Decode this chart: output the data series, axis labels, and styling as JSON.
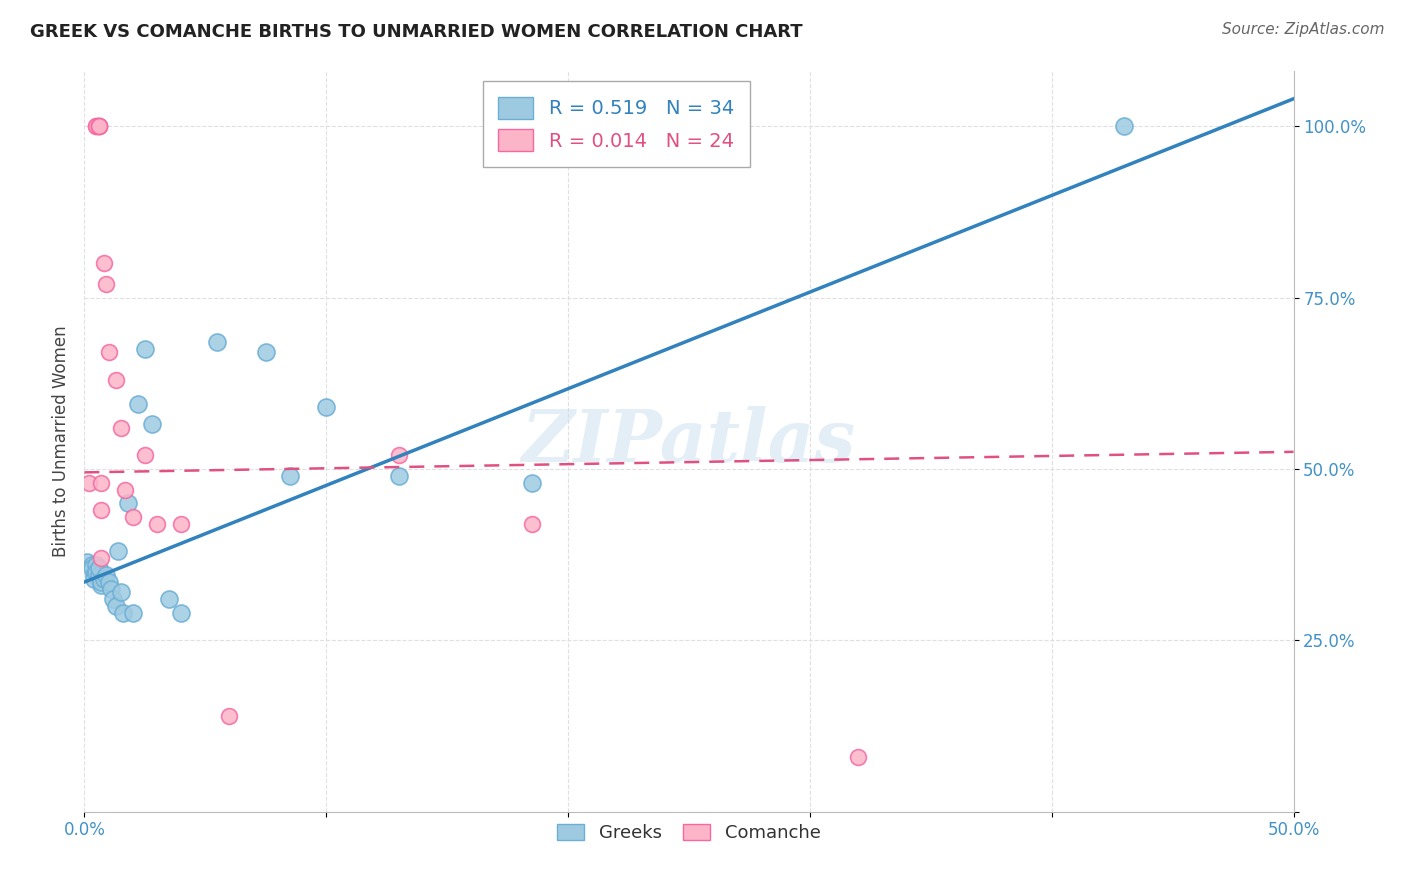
{
  "title": "GREEK VS COMANCHE BIRTHS TO UNMARRIED WOMEN CORRELATION CHART",
  "source": "Source: ZipAtlas.com",
  "ylabel": "Births to Unmarried Women",
  "xlim": [
    0.0,
    0.5
  ],
  "ylim": [
    0.0,
    1.08
  ],
  "yticks": [
    0.0,
    0.25,
    0.5,
    0.75,
    1.0
  ],
  "yticklabels": [
    "",
    "25.0%",
    "50.0%",
    "75.0%",
    "100.0%"
  ],
  "xtick_labels": [
    "0.0%",
    "",
    "",
    "",
    "",
    "50.0%"
  ],
  "xtick_positions": [
    0.0,
    0.1,
    0.2,
    0.3,
    0.4,
    0.5
  ],
  "greek_color": "#9ecae1",
  "comanche_color": "#fbb4c8",
  "greek_edge_color": "#6baed6",
  "comanche_edge_color": "#f768a1",
  "greek_line_color": "#3182bd",
  "comanche_line_color": "#e05080",
  "legend_R_greek": "R = 0.519",
  "legend_N_greek": "N = 34",
  "legend_R_comanche": "R = 0.014",
  "legend_N_comanche": "N = 24",
  "watermark": "ZIPatlas",
  "greek_x": [
    0.001,
    0.003,
    0.003,
    0.004,
    0.004,
    0.005,
    0.005,
    0.006,
    0.006,
    0.007,
    0.007,
    0.008,
    0.009,
    0.01,
    0.011,
    0.012,
    0.013,
    0.014,
    0.015,
    0.016,
    0.018,
    0.02,
    0.022,
    0.025,
    0.028,
    0.035,
    0.04,
    0.055,
    0.075,
    0.085,
    0.1,
    0.13,
    0.185,
    0.43
  ],
  "greek_y": [
    0.365,
    0.36,
    0.355,
    0.345,
    0.34,
    0.36,
    0.35,
    0.345,
    0.355,
    0.33,
    0.335,
    0.34,
    0.345,
    0.335,
    0.325,
    0.31,
    0.3,
    0.38,
    0.32,
    0.29,
    0.45,
    0.29,
    0.595,
    0.675,
    0.565,
    0.31,
    0.29,
    0.685,
    0.67,
    0.49,
    0.59,
    0.49,
    0.48,
    1.0
  ],
  "comanche_x": [
    0.002,
    0.005,
    0.005,
    0.006,
    0.006,
    0.006,
    0.006,
    0.007,
    0.007,
    0.007,
    0.008,
    0.009,
    0.01,
    0.013,
    0.015,
    0.017,
    0.02,
    0.025,
    0.03,
    0.04,
    0.06,
    0.13,
    0.185,
    0.32
  ],
  "comanche_y": [
    0.48,
    1.0,
    1.0,
    1.0,
    1.0,
    1.0,
    1.0,
    0.48,
    0.44,
    0.37,
    0.8,
    0.77,
    0.67,
    0.63,
    0.56,
    0.47,
    0.43,
    0.52,
    0.42,
    0.42,
    0.14,
    0.52,
    0.42,
    0.08
  ],
  "greek_line_x": [
    0.0,
    0.5
  ],
  "greek_line_y": [
    0.335,
    1.04
  ],
  "comanche_line_x": [
    0.0,
    0.5
  ],
  "comanche_line_y": [
    0.495,
    0.525
  ],
  "background_color": "#ffffff",
  "grid_color": "#e0e0e0",
  "title_fontsize": 13,
  "tick_fontsize": 12,
  "ylabel_fontsize": 12,
  "legend_fontsize": 14,
  "source_fontsize": 11
}
